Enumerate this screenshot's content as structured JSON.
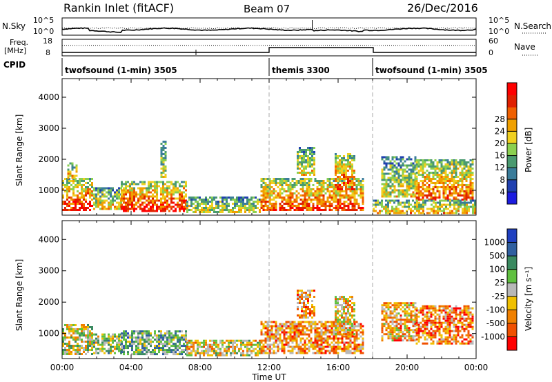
{
  "header": {
    "station": "Rankin Inlet (fitACF)",
    "beam": "Beam 07",
    "date": "26/Dec/2016"
  },
  "noise_panel": {
    "left_label": "N.Sky",
    "left_ticks": [
      "10^5",
      "10^0"
    ],
    "right_ticks": [
      "10^5",
      "10^0"
    ],
    "right_label": "N.Search"
  },
  "freq_panel": {
    "left_label_top": "Freq.",
    "left_label_bottom": "[MHz]",
    "left_ticks": [
      "18",
      "8"
    ],
    "right_ticks": [
      "60",
      "0"
    ],
    "right_label": "Nave"
  },
  "cpid": {
    "label": "CPID",
    "segments": [
      {
        "name": "twofsound (1-min) 3505",
        "start_hour": 0,
        "end_hour": 12
      },
      {
        "name": "themis 3300",
        "start_hour": 12,
        "end_hour": 18
      },
      {
        "name": "twofsound (1-min) 3505",
        "start_hour": 18,
        "end_hour": 24
      }
    ]
  },
  "time_axis": {
    "label": "Time UT",
    "ticks": [
      "00:00",
      "04:00",
      "08:00",
      "12:00",
      "16:00",
      "20:00",
      "00:00"
    ]
  },
  "chart_data": [
    {
      "type": "heatmap",
      "name": "power",
      "ylabel": "Slant Range [km]",
      "yticks": [
        "1000",
        "2000",
        "3000",
        "4000"
      ],
      "ylim": [
        200,
        4600
      ],
      "xlim": [
        0,
        24
      ],
      "colorbar_label": "Power [dB]",
      "colorbar_ticks": [
        "4",
        "8",
        "12",
        "16",
        "20",
        "24",
        "28"
      ],
      "colorbar_colors": [
        "#1c1ce0",
        "#2040b0",
        "#3a7c9a",
        "#4a9a70",
        "#8bd050",
        "#f0d020",
        "#f0a000",
        "#f06000",
        "#e02000",
        "#ff0000"
      ],
      "regions": [
        {
          "x0": 0.0,
          "x1": 1.8,
          "r0": 350,
          "r1": 1400,
          "level": 0.8
        },
        {
          "x0": 0.3,
          "x1": 0.9,
          "r0": 1400,
          "r1": 1900,
          "level": 0.6
        },
        {
          "x0": 1.8,
          "x1": 3.4,
          "r0": 400,
          "r1": 1100,
          "level": 0.55
        },
        {
          "x0": 3.4,
          "x1": 7.2,
          "r0": 350,
          "r1": 1300,
          "level": 0.8
        },
        {
          "x0": 5.7,
          "x1": 6.0,
          "r0": 1400,
          "r1": 2600,
          "level": 0.45
        },
        {
          "x0": 7.2,
          "x1": 11.5,
          "r0": 300,
          "r1": 800,
          "level": 0.5
        },
        {
          "x0": 11.5,
          "x1": 17.5,
          "r0": 350,
          "r1": 1400,
          "level": 0.75
        },
        {
          "x0": 13.6,
          "x1": 14.6,
          "r0": 1500,
          "r1": 2400,
          "level": 0.55
        },
        {
          "x0": 15.8,
          "x1": 17.0,
          "r0": 1000,
          "r1": 2200,
          "level": 0.75
        },
        {
          "x0": 18.5,
          "x1": 20.5,
          "r0": 800,
          "r1": 2100,
          "level": 0.5
        },
        {
          "x0": 20.5,
          "x1": 23.8,
          "r0": 700,
          "r1": 2000,
          "level": 0.7
        },
        {
          "x0": 18.0,
          "x1": 24.0,
          "r0": 250,
          "r1": 700,
          "level": 0.6
        }
      ]
    },
    {
      "type": "heatmap",
      "name": "velocity",
      "ylabel": "Slant Range [km]",
      "yticks": [
        "1000",
        "2000",
        "3000",
        "4000"
      ],
      "ylim": [
        200,
        4600
      ],
      "xlim": [
        0,
        24
      ],
      "colorbar_label": "Velocity [m s⁻¹]",
      "colorbar_ticks": [
        "1000",
        "500",
        "100",
        "25",
        "-25",
        "-100",
        "-500",
        "-1000"
      ],
      "colorbar_colors": [
        "#2040c0",
        "#3060a0",
        "#3a8a60",
        "#60c040",
        "#b8b8b8",
        "#f0c000",
        "#f08000",
        "#f05000",
        "#ff0000"
      ],
      "regions": [
        {
          "x0": 0.0,
          "x1": 1.8,
          "r0": 350,
          "r1": 1300,
          "level": 0.5
        },
        {
          "x0": 1.8,
          "x1": 3.4,
          "r0": 400,
          "r1": 1000,
          "level": 0.45
        },
        {
          "x0": 3.4,
          "x1": 7.2,
          "r0": 350,
          "r1": 1100,
          "level": 0.35
        },
        {
          "x0": 7.2,
          "x1": 11.5,
          "r0": 300,
          "r1": 800,
          "level": 0.55
        },
        {
          "x0": 11.5,
          "x1": 17.5,
          "r0": 350,
          "r1": 1400,
          "level": 0.7
        },
        {
          "x0": 13.6,
          "x1": 14.6,
          "r0": 1500,
          "r1": 2400,
          "level": 0.7
        },
        {
          "x0": 15.8,
          "x1": 17.0,
          "r0": 1000,
          "r1": 2200,
          "level": 0.6
        },
        {
          "x0": 18.5,
          "x1": 20.5,
          "r0": 800,
          "r1": 2000,
          "level": 0.65
        },
        {
          "x0": 20.5,
          "x1": 23.8,
          "r0": 700,
          "r1": 1900,
          "level": 0.75
        }
      ]
    }
  ]
}
